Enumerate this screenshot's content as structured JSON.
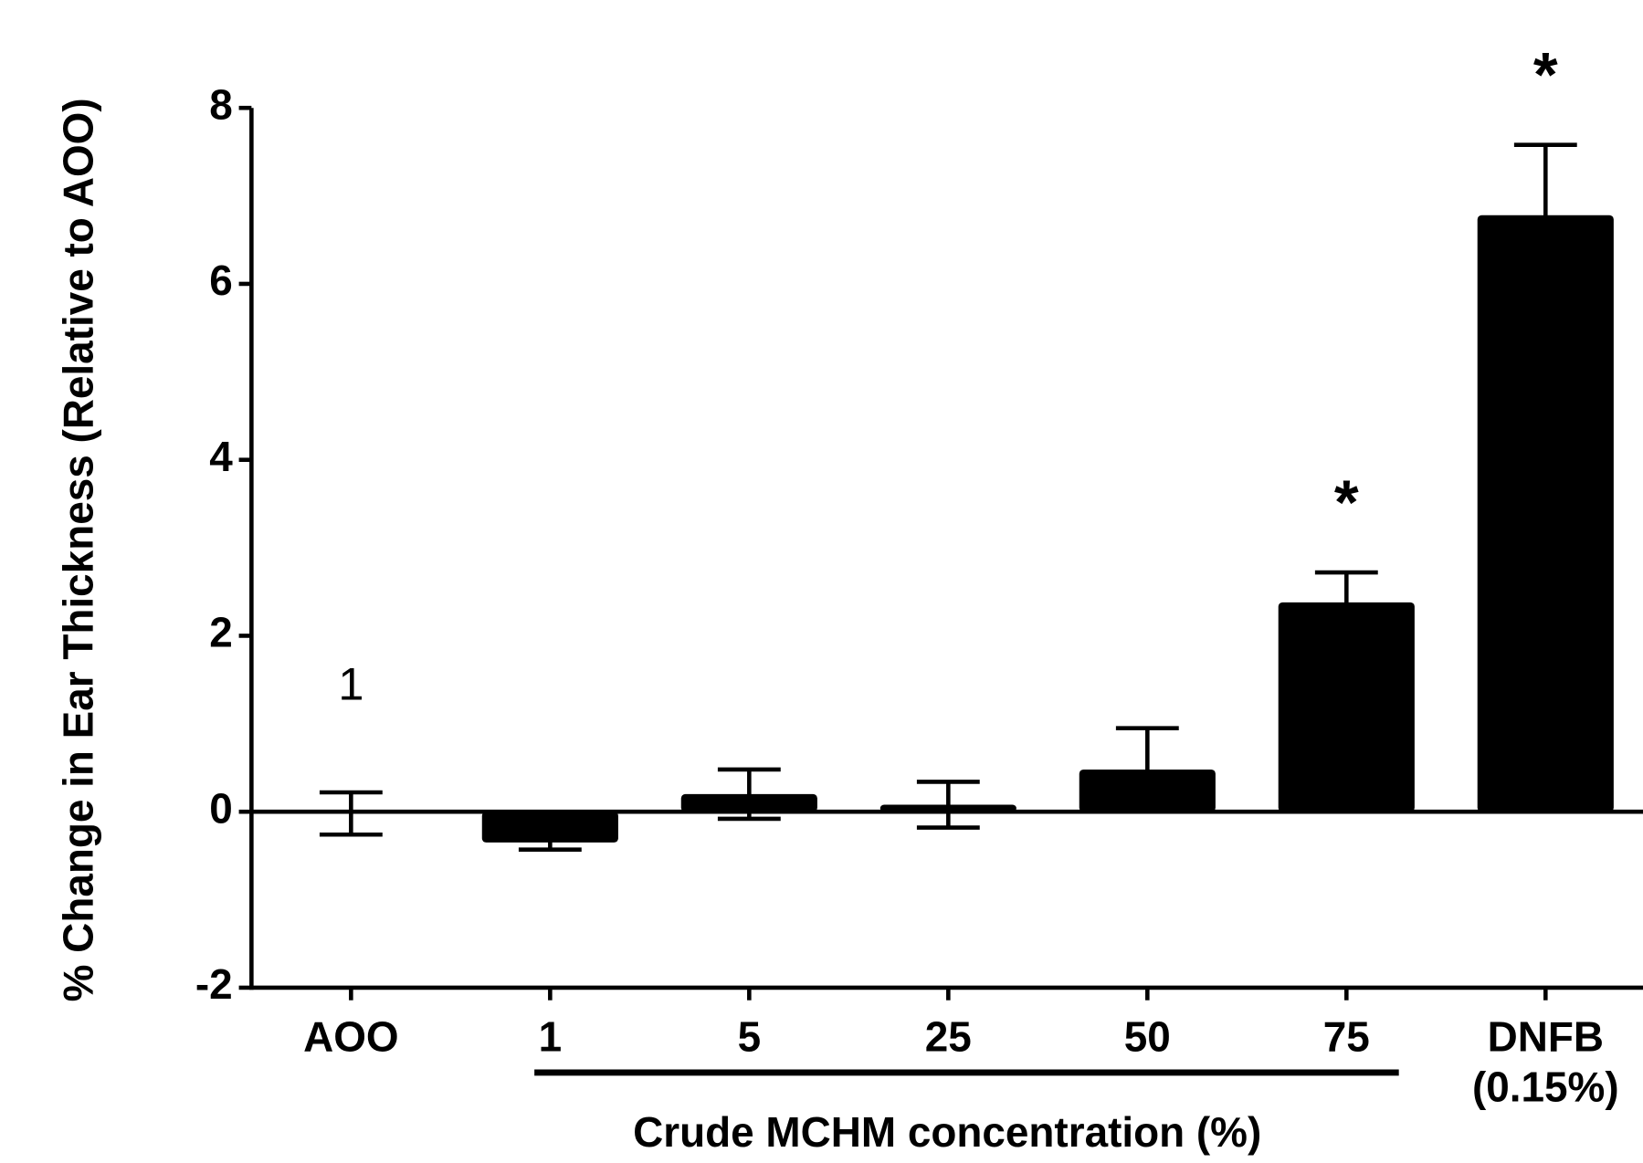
{
  "chart_data": {
    "type": "bar",
    "y_label": "% Change in Ear Thickness (Relative to AOO)",
    "x_label": "Crude MCHM concentration (%)",
    "categories": [
      "AOO",
      "1",
      "5",
      "25",
      "50",
      "75",
      "DNFB (0.15%)"
    ],
    "values": [
      -0.02,
      -0.35,
      0.2,
      0.08,
      0.48,
      2.38,
      6.78
    ],
    "errors": [
      0.24,
      0.08,
      0.28,
      0.26,
      0.47,
      0.34,
      0.8
    ],
    "color": "#000000",
    "ylim": [
      -2,
      8
    ],
    "yticks": [
      -2,
      0,
      2,
      4,
      6,
      8
    ],
    "annotations": [
      {
        "text": "1",
        "category": "AOO"
      },
      {
        "text": "*",
        "category": "75"
      },
      {
        "text": "*",
        "category": "DNFB (0.15%)"
      }
    ],
    "group_categories": [
      "1",
      "75"
    ]
  }
}
